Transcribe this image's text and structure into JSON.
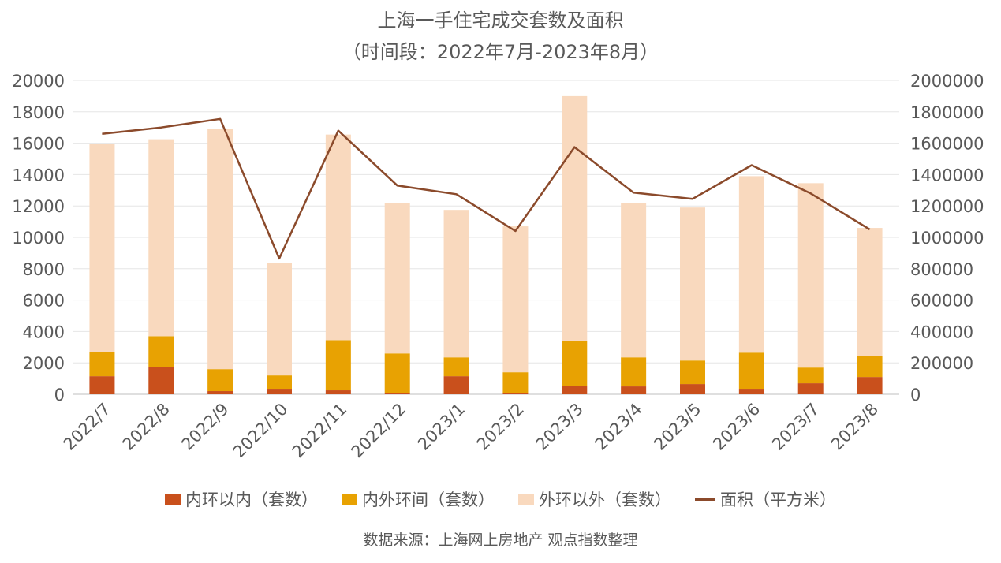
{
  "chart_data": {
    "type": "bar",
    "title": "上海一手住宅成交套数及面积",
    "subtitle": "（时间段：2022年7月-2023年8月）",
    "categories": [
      "2022/7",
      "2022/8",
      "2022/9",
      "2022/10",
      "2022/11",
      "2022/12",
      "2023/1",
      "2023/2",
      "2023/3",
      "2023/4",
      "2023/5",
      "2023/6",
      "2023/7",
      "2023/8"
    ],
    "stacked": true,
    "series": [
      {
        "name": "内环以内（套数）",
        "color": "#C9501C",
        "axis": "left",
        "values": [
          1150,
          1750,
          200,
          350,
          250,
          100,
          1150,
          50,
          550,
          500,
          650,
          350,
          700,
          1100
        ]
      },
      {
        "name": "内外环间（套数）",
        "color": "#E8A202",
        "axis": "left",
        "values": [
          1550,
          1950,
          1400,
          850,
          3200,
          2500,
          1200,
          1350,
          2850,
          1850,
          1500,
          2300,
          1000,
          1350
        ]
      },
      {
        "name": "外环以外（套数）",
        "color": "#F9D9BE",
        "axis": "left",
        "values": [
          13250,
          12550,
          15300,
          7150,
          13100,
          9600,
          9400,
          9300,
          15600,
          9850,
          9750,
          11250,
          11750,
          8150
        ]
      },
      {
        "name": "面积（平方米）",
        "color": "#8B4A2B",
        "axis": "right",
        "type": "line",
        "values": [
          1660000,
          1700000,
          1755000,
          865000,
          1680000,
          1330000,
          1275000,
          1040000,
          1575000,
          1285000,
          1245000,
          1460000,
          1280000,
          1050000
        ]
      }
    ],
    "y_left": {
      "min": 0,
      "max": 20000,
      "ticks": [
        "0",
        "2000",
        "4000",
        "6000",
        "8000",
        "10000",
        "12000",
        "14000",
        "16000",
        "18000",
        "20000"
      ]
    },
    "y_right": {
      "min": 0,
      "max": 2000000,
      "ticks": [
        "0",
        "200000",
        "400000",
        "600000",
        "800000",
        "1000000",
        "1200000",
        "1400000",
        "1600000",
        "1800000",
        "2000000"
      ]
    },
    "grid": true,
    "legend_position": "bottom",
    "source": "数据来源：上海网上房地产 观点指数整理"
  }
}
